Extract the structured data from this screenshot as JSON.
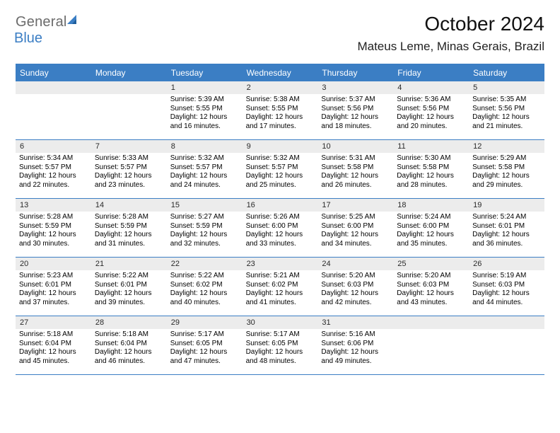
{
  "logo": {
    "text1": "General",
    "text2": "Blue"
  },
  "title": "October 2024",
  "location": "Mateus Leme, Minas Gerais, Brazil",
  "colors": {
    "brand_blue": "#3b7ec4",
    "header_bg": "#3b7ec4",
    "header_text": "#ffffff",
    "daynum_bg": "#ececec",
    "border": "#3b7ec4",
    "gray_logo": "#6b6b6b"
  },
  "dayNames": [
    "Sunday",
    "Monday",
    "Tuesday",
    "Wednesday",
    "Thursday",
    "Friday",
    "Saturday"
  ],
  "weeks": [
    [
      {
        "blank": true
      },
      {
        "blank": true
      },
      {
        "n": "1",
        "sunrise": "5:39 AM",
        "sunset": "5:55 PM",
        "daylight": "12 hours and 16 minutes."
      },
      {
        "n": "2",
        "sunrise": "5:38 AM",
        "sunset": "5:55 PM",
        "daylight": "12 hours and 17 minutes."
      },
      {
        "n": "3",
        "sunrise": "5:37 AM",
        "sunset": "5:56 PM",
        "daylight": "12 hours and 18 minutes."
      },
      {
        "n": "4",
        "sunrise": "5:36 AM",
        "sunset": "5:56 PM",
        "daylight": "12 hours and 20 minutes."
      },
      {
        "n": "5",
        "sunrise": "5:35 AM",
        "sunset": "5:56 PM",
        "daylight": "12 hours and 21 minutes."
      }
    ],
    [
      {
        "n": "6",
        "sunrise": "5:34 AM",
        "sunset": "5:57 PM",
        "daylight": "12 hours and 22 minutes."
      },
      {
        "n": "7",
        "sunrise": "5:33 AM",
        "sunset": "5:57 PM",
        "daylight": "12 hours and 23 minutes."
      },
      {
        "n": "8",
        "sunrise": "5:32 AM",
        "sunset": "5:57 PM",
        "daylight": "12 hours and 24 minutes."
      },
      {
        "n": "9",
        "sunrise": "5:32 AM",
        "sunset": "5:57 PM",
        "daylight": "12 hours and 25 minutes."
      },
      {
        "n": "10",
        "sunrise": "5:31 AM",
        "sunset": "5:58 PM",
        "daylight": "12 hours and 26 minutes."
      },
      {
        "n": "11",
        "sunrise": "5:30 AM",
        "sunset": "5:58 PM",
        "daylight": "12 hours and 28 minutes."
      },
      {
        "n": "12",
        "sunrise": "5:29 AM",
        "sunset": "5:58 PM",
        "daylight": "12 hours and 29 minutes."
      }
    ],
    [
      {
        "n": "13",
        "sunrise": "5:28 AM",
        "sunset": "5:59 PM",
        "daylight": "12 hours and 30 minutes."
      },
      {
        "n": "14",
        "sunrise": "5:28 AM",
        "sunset": "5:59 PM",
        "daylight": "12 hours and 31 minutes."
      },
      {
        "n": "15",
        "sunrise": "5:27 AM",
        "sunset": "5:59 PM",
        "daylight": "12 hours and 32 minutes."
      },
      {
        "n": "16",
        "sunrise": "5:26 AM",
        "sunset": "6:00 PM",
        "daylight": "12 hours and 33 minutes."
      },
      {
        "n": "17",
        "sunrise": "5:25 AM",
        "sunset": "6:00 PM",
        "daylight": "12 hours and 34 minutes."
      },
      {
        "n": "18",
        "sunrise": "5:24 AM",
        "sunset": "6:00 PM",
        "daylight": "12 hours and 35 minutes."
      },
      {
        "n": "19",
        "sunrise": "5:24 AM",
        "sunset": "6:01 PM",
        "daylight": "12 hours and 36 minutes."
      }
    ],
    [
      {
        "n": "20",
        "sunrise": "5:23 AM",
        "sunset": "6:01 PM",
        "daylight": "12 hours and 37 minutes."
      },
      {
        "n": "21",
        "sunrise": "5:22 AM",
        "sunset": "6:01 PM",
        "daylight": "12 hours and 39 minutes."
      },
      {
        "n": "22",
        "sunrise": "5:22 AM",
        "sunset": "6:02 PM",
        "daylight": "12 hours and 40 minutes."
      },
      {
        "n": "23",
        "sunrise": "5:21 AM",
        "sunset": "6:02 PM",
        "daylight": "12 hours and 41 minutes."
      },
      {
        "n": "24",
        "sunrise": "5:20 AM",
        "sunset": "6:03 PM",
        "daylight": "12 hours and 42 minutes."
      },
      {
        "n": "25",
        "sunrise": "5:20 AM",
        "sunset": "6:03 PM",
        "daylight": "12 hours and 43 minutes."
      },
      {
        "n": "26",
        "sunrise": "5:19 AM",
        "sunset": "6:03 PM",
        "daylight": "12 hours and 44 minutes."
      }
    ],
    [
      {
        "n": "27",
        "sunrise": "5:18 AM",
        "sunset": "6:04 PM",
        "daylight": "12 hours and 45 minutes."
      },
      {
        "n": "28",
        "sunrise": "5:18 AM",
        "sunset": "6:04 PM",
        "daylight": "12 hours and 46 minutes."
      },
      {
        "n": "29",
        "sunrise": "5:17 AM",
        "sunset": "6:05 PM",
        "daylight": "12 hours and 47 minutes."
      },
      {
        "n": "30",
        "sunrise": "5:17 AM",
        "sunset": "6:05 PM",
        "daylight": "12 hours and 48 minutes."
      },
      {
        "n": "31",
        "sunrise": "5:16 AM",
        "sunset": "6:06 PM",
        "daylight": "12 hours and 49 minutes."
      },
      {
        "blank": true
      },
      {
        "blank": true
      }
    ]
  ]
}
